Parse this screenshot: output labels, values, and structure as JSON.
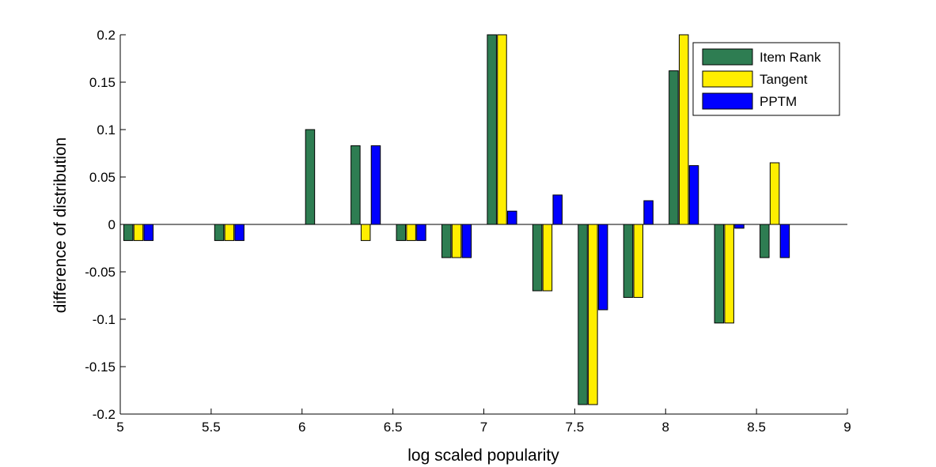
{
  "chart_data": {
    "type": "bar",
    "xlabel": "log scaled popularity",
    "ylabel": "difference of distribution",
    "xlim": [
      5,
      9
    ],
    "ylim": [
      -0.2,
      0.2
    ],
    "xticks": [
      "5",
      "5.5",
      "6",
      "6.5",
      "7",
      "7.5",
      "8",
      "8.5",
      "9"
    ],
    "yticks": [
      "-0.2",
      "-0.15",
      "-0.1",
      "-0.05",
      "0",
      "0.05",
      "0.1",
      "0.15",
      "0.2"
    ],
    "x": [
      5.1,
      5.6,
      6.1,
      6.35,
      6.6,
      6.85,
      7.1,
      7.35,
      7.6,
      7.85,
      8.1,
      8.35,
      8.6
    ],
    "series": [
      {
        "name": "Item Rank",
        "color": "#2e7d52",
        "values": [
          -0.017,
          -0.017,
          0.1,
          0.083,
          -0.017,
          -0.035,
          0.2,
          -0.07,
          -0.19,
          -0.077,
          0.162,
          -0.104,
          -0.035
        ]
      },
      {
        "name": "Tangent",
        "color": "#ffee00",
        "values": [
          -0.017,
          -0.017,
          0,
          -0.017,
          -0.017,
          -0.035,
          0.2,
          -0.07,
          -0.19,
          -0.077,
          0.2,
          -0.104,
          0.065
        ]
      },
      {
        "name": "PPTM",
        "color": "#0000ff",
        "values": [
          -0.017,
          -0.017,
          0,
          0.083,
          -0.017,
          -0.035,
          0.014,
          0.031,
          -0.09,
          0.025,
          0.062,
          -0.004,
          -0.035
        ]
      }
    ],
    "legend_position": "top-right",
    "grid": false
  }
}
